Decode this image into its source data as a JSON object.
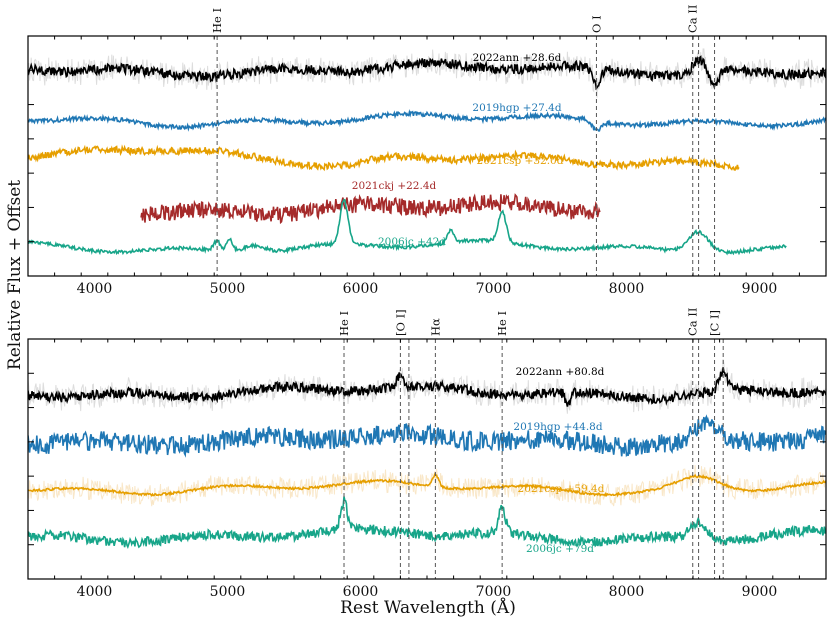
{
  "chart_data": {
    "type": "line",
    "xlabel": "Rest Wavelength (Å)",
    "ylabel": "Relative Flux + Offset",
    "xlim": [
      3500,
      9500
    ],
    "xticks": [
      4000,
      5000,
      6000,
      7000,
      8000,
      9000
    ],
    "panels": [
      {
        "name": "top",
        "line_markers": [
          {
            "label": "He I",
            "wavelength": 4922
          },
          {
            "label": "O I",
            "wavelength": 7774
          },
          {
            "label": "Ca II",
            "wavelength": 8498
          },
          {
            "label": "",
            "wavelength": 8542
          },
          {
            "label": "",
            "wavelength": 8662
          }
        ],
        "series": [
          {
            "name": "2022ann +28.6d",
            "color": "#000000",
            "range": [
              3500,
              9500
            ],
            "level": 0.14,
            "noise": 0.35,
            "raw_gray": true,
            "features": [
              {
                "center": 7774,
                "amp": -0.9,
                "width": 30
              },
              {
                "center": 8540,
                "amp": 0.7,
                "width": 40
              },
              {
                "center": 8662,
                "amp": -0.6,
                "width": 30
              }
            ]
          },
          {
            "name": "2019hgp +27.4d",
            "color": "#1f77b4",
            "range": [
              3500,
              9500
            ],
            "level": 0.35,
            "noise": 0.15,
            "raw_gray": false,
            "features": [
              {
                "center": 7774,
                "amp": -0.5,
                "width": 30
              }
            ]
          },
          {
            "name": "2021csp +32.0d",
            "color": "#e69f00",
            "range": [
              3500,
              8850
            ],
            "level": 0.52,
            "noise": 0.25,
            "raw_gray": false,
            "features": [
              {
                "center": 4500,
                "amp": 0.8,
                "width": 500
              },
              {
                "center": 5900,
                "amp": -0.3,
                "width": 200
              }
            ]
          },
          {
            "name": "2021ckj +22.4d",
            "color": "#a52a2a",
            "range": [
              4350,
              7800
            ],
            "level": 0.72,
            "noise": 0.6,
            "raw_gray": false,
            "features": []
          },
          {
            "name": "2006jc +42d",
            "color": "#17a589",
            "range": [
              3500,
              9200
            ],
            "level": 0.88,
            "noise": 0.12,
            "raw_gray": false,
            "features": [
              {
                "center": 5876,
                "amp": 2.2,
                "width": 30
              },
              {
                "center": 7065,
                "amp": 1.5,
                "width": 30
              },
              {
                "center": 8540,
                "amp": 1.1,
                "width": 80
              },
              {
                "center": 5016,
                "amp": 0.6,
                "width": 25
              },
              {
                "center": 4922,
                "amp": 0.5,
                "width": 25
              },
              {
                "center": 6678,
                "amp": 0.6,
                "width": 25
              },
              {
                "center": 5200,
                "amp": 0.4,
                "width": 80
              }
            ]
          }
        ],
        "labels": [
          {
            "text": "2022ann +28.6d",
            "color": "#000000"
          },
          {
            "text": "2019hgp +27.4d",
            "color": "#1f77b4"
          },
          {
            "text": "2021csp +32.0d",
            "color": "#e69f00"
          },
          {
            "text": "2021ckj +22.4d",
            "color": "#a52a2a"
          },
          {
            "text": "2006jc +42d",
            "color": "#17a589"
          }
        ]
      },
      {
        "name": "bottom",
        "line_markers": [
          {
            "label": "He I",
            "wavelength": 5876
          },
          {
            "label": "[O I]",
            "wavelength": 6300
          },
          {
            "label": "",
            "wavelength": 6364
          },
          {
            "label": "Hα",
            "wavelength": 6563
          },
          {
            "label": "He I",
            "wavelength": 7065
          },
          {
            "label": "Ca II",
            "wavelength": 8498
          },
          {
            "label": "",
            "wavelength": 8542
          },
          {
            "label": "[C I]",
            "wavelength": 8662
          },
          {
            "label": "",
            "wavelength": 8727
          }
        ],
        "series": [
          {
            "name": "2022ann +80.8d",
            "color": "#000000",
            "range": [
              3500,
              9500
            ],
            "level": 0.22,
            "noise": 0.35,
            "raw_gray": true,
            "features": [
              {
                "center": 6300,
                "amp": 0.6,
                "width": 25
              },
              {
                "center": 8727,
                "amp": 1.0,
                "width": 30
              },
              {
                "center": 7560,
                "amp": -0.6,
                "width": 20
              }
            ]
          },
          {
            "name": "2019hgp +44.8d",
            "color": "#1f77b4",
            "range": [
              3500,
              9500
            ],
            "level": 0.42,
            "noise": 0.7,
            "raw_gray": false,
            "features": [
              {
                "center": 8600,
                "amp": 0.7,
                "width": 80
              }
            ]
          },
          {
            "name": "2021csp +59.4d",
            "color": "#e69f00",
            "range": [
              3500,
              9500
            ],
            "level": 0.62,
            "noise": 0.08,
            "raw_gray": true,
            "features": [
              {
                "center": 6563,
                "amp": 0.6,
                "width": 25
              },
              {
                "center": 8550,
                "amp": 0.6,
                "width": 150
              }
            ]
          },
          {
            "name": "2006jc +79d",
            "color": "#17a589",
            "range": [
              3500,
              9500
            ],
            "level": 0.82,
            "noise": 0.35,
            "raw_gray": false,
            "features": [
              {
                "center": 5876,
                "amp": 1.4,
                "width": 25
              },
              {
                "center": 7065,
                "amp": 1.3,
                "width": 25
              },
              {
                "center": 8540,
                "amp": 0.8,
                "width": 60
              }
            ]
          }
        ],
        "labels": [
          {
            "text": "2022ann +80.8d",
            "color": "#000000"
          },
          {
            "text": "2019hgp +44.8d",
            "color": "#1f77b4"
          },
          {
            "text": "2021csp +59.4d",
            "color": "#e69f00"
          },
          {
            "text": "2006jc +79d",
            "color": "#17a589"
          }
        ]
      }
    ]
  }
}
